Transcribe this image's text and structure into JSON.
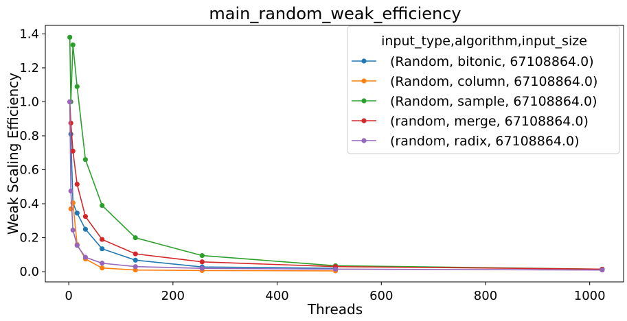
{
  "chart_data": {
    "type": "line",
    "title": "main_random_weak_efficiency",
    "xlabel": "Threads",
    "ylabel": "Weak Scaling Efficiency",
    "xlim": [
      -45,
      1065
    ],
    "ylim": [
      -0.06,
      1.45
    ],
    "xticks": [
      0,
      200,
      400,
      600,
      800,
      1000
    ],
    "yticks": [
      0.0,
      0.2,
      0.4,
      0.6,
      0.8,
      1.0,
      1.2,
      1.4
    ],
    "ytick_labels": [
      "0.0",
      "0.2",
      "0.4",
      "0.6",
      "0.8",
      "1.0",
      "1.2",
      "1.4"
    ],
    "grid": false,
    "legend": {
      "title": "input_type,algorithm,input_size",
      "position": "top-right"
    },
    "series": [
      {
        "name": "(Random, bitonic, 67108864.0)",
        "color": "#1f77b4",
        "points": [
          [
            2,
            1.0
          ],
          [
            4,
            0.81
          ],
          [
            8,
            0.405
          ],
          [
            16,
            0.345
          ],
          [
            32,
            0.25
          ],
          [
            64,
            0.135
          ],
          [
            128,
            0.068
          ],
          [
            256,
            0.028
          ],
          [
            512,
            0.02
          ]
        ]
      },
      {
        "name": "(Random, column, 67108864.0)",
        "color": "#ff7f0e",
        "points": [
          [
            4,
            0.37
          ],
          [
            8,
            0.405
          ],
          [
            16,
            0.16
          ],
          [
            32,
            0.075
          ],
          [
            64,
            0.022
          ],
          [
            128,
            0.01
          ],
          [
            256,
            0.007
          ],
          [
            512,
            0.005
          ]
        ]
      },
      {
        "name": "(Random, sample, 67108864.0)",
        "color": "#2ca02c",
        "points": [
          [
            2,
            1.38
          ],
          [
            4,
            1.0
          ],
          [
            8,
            1.335
          ],
          [
            16,
            1.09
          ],
          [
            32,
            0.66
          ],
          [
            64,
            0.39
          ],
          [
            128,
            0.2
          ],
          [
            256,
            0.095
          ],
          [
            512,
            0.035
          ],
          [
            1024,
            0.015
          ]
        ]
      },
      {
        "name": "(random, merge, 67108864.0)",
        "color": "#d62728",
        "points": [
          [
            2,
            1.0
          ],
          [
            4,
            0.875
          ],
          [
            8,
            0.71
          ],
          [
            16,
            0.515
          ],
          [
            32,
            0.325
          ],
          [
            64,
            0.19
          ],
          [
            128,
            0.105
          ],
          [
            256,
            0.058
          ],
          [
            512,
            0.03
          ],
          [
            1024,
            0.015
          ]
        ]
      },
      {
        "name": "(random, radix, 67108864.0)",
        "color": "#9467bd",
        "points": [
          [
            2,
            1.0
          ],
          [
            4,
            0.475
          ],
          [
            8,
            0.245
          ],
          [
            16,
            0.155
          ],
          [
            32,
            0.085
          ],
          [
            64,
            0.05
          ],
          [
            128,
            0.03
          ],
          [
            256,
            0.02
          ],
          [
            512,
            0.015
          ],
          [
            1024,
            0.01
          ]
        ]
      }
    ]
  }
}
